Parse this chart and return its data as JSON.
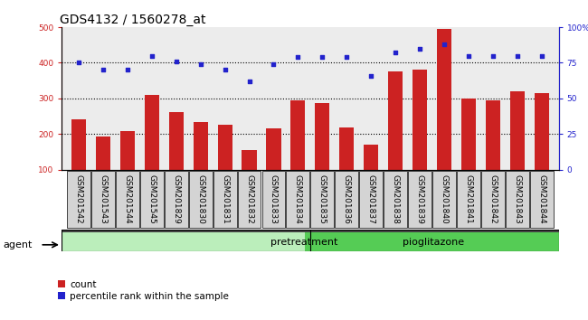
{
  "title": "GDS4132 / 1560278_at",
  "categories": [
    "GSM201542",
    "GSM201543",
    "GSM201544",
    "GSM201545",
    "GSM201829",
    "GSM201830",
    "GSM201831",
    "GSM201832",
    "GSM201833",
    "GSM201834",
    "GSM201835",
    "GSM201836",
    "GSM201837",
    "GSM201838",
    "GSM201839",
    "GSM201840",
    "GSM201841",
    "GSM201842",
    "GSM201843",
    "GSM201844"
  ],
  "bar_values": [
    242,
    193,
    207,
    310,
    262,
    234,
    227,
    155,
    215,
    295,
    287,
    218,
    170,
    375,
    380,
    495,
    300,
    295,
    320,
    315
  ],
  "dot_values": [
    75,
    70,
    70,
    80,
    76,
    74,
    70,
    62,
    74,
    79,
    79,
    79,
    66,
    82,
    85,
    88,
    80,
    80,
    80,
    80
  ],
  "pretreatment_count": 10,
  "pioglitazone_count": 10,
  "bar_color": "#cc2222",
  "dot_color": "#2222cc",
  "pretreatment_color": "#bbeebb",
  "pioglitazone_color": "#55cc55",
  "ylabel_left": "",
  "ylabel_right": "",
  "ylim_left": [
    100,
    500
  ],
  "ylim_right": [
    0,
    100
  ],
  "yticks_left": [
    100,
    200,
    300,
    400,
    500
  ],
  "yticks_right": [
    0,
    25,
    50,
    75,
    100
  ],
  "cell_bg_color": "#d4d4d4",
  "plot_bg_color": "#ececec",
  "title_fontsize": 10,
  "tick_fontsize": 6.5
}
